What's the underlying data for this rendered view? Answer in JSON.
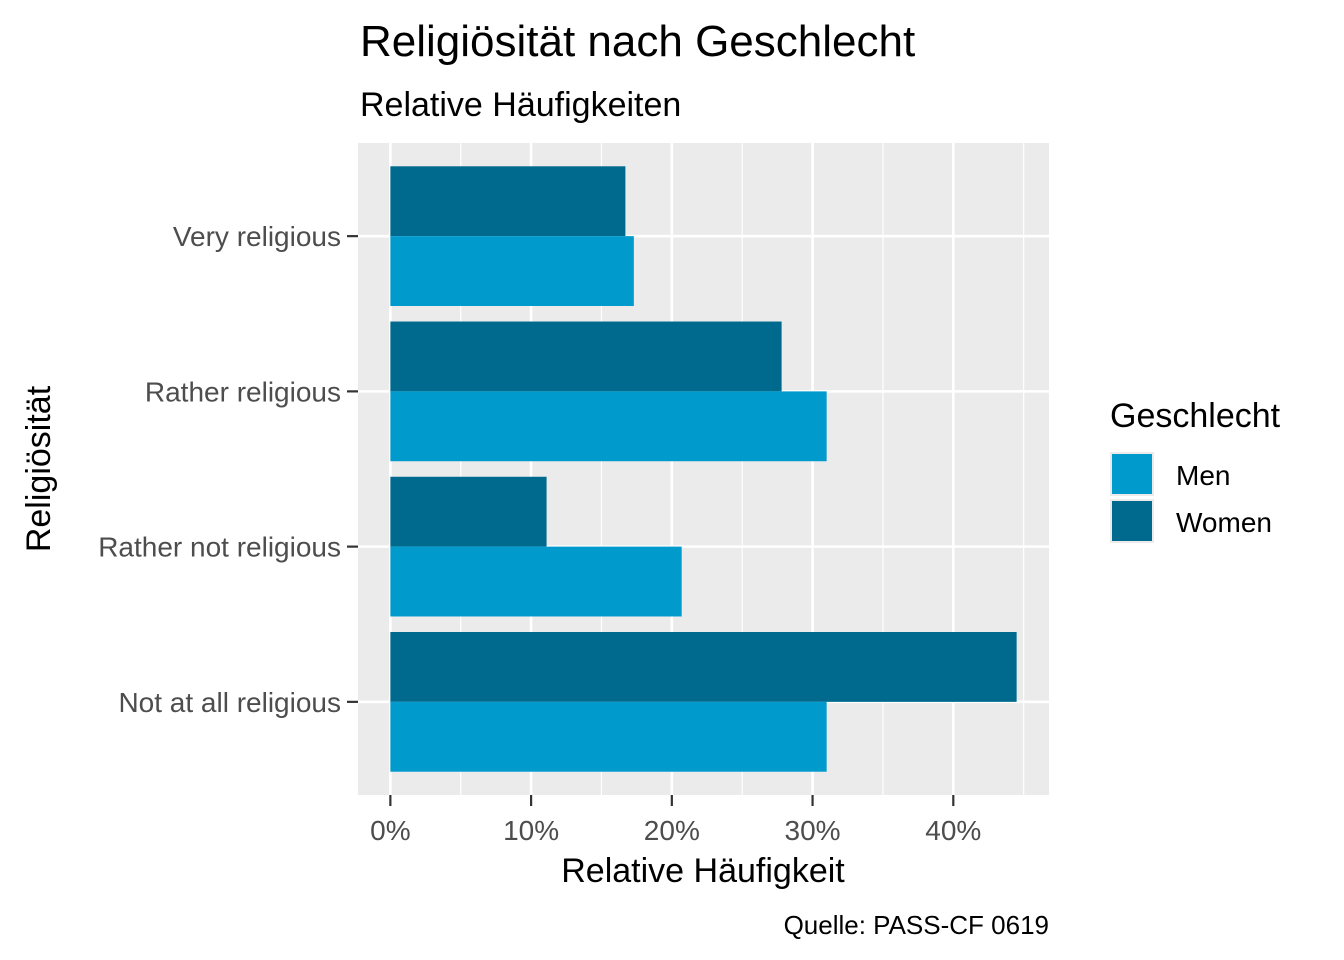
{
  "chart_data": {
    "type": "bar",
    "orientation": "horizontal",
    "title": "Religiösität nach Geschlecht",
    "subtitle": "Relative Häufigkeiten",
    "xlabel": "Relative Häufigkeit",
    "ylabel": "Religiösität",
    "caption": "Quelle: PASS-CF 0619",
    "categories": [
      "Very religious",
      "Rather religious",
      "Rather not religious",
      "Not at all religious"
    ],
    "series": [
      {
        "name": "Men",
        "color": "#009ACD",
        "values": [
          17.3,
          31.0,
          20.7,
          31.0
        ]
      },
      {
        "name": "Women",
        "color": "#006A8E",
        "values": [
          16.7,
          27.8,
          11.1,
          44.5
        ]
      }
    ],
    "x_ticks": [
      "0%",
      "10%",
      "20%",
      "30%",
      "40%"
    ],
    "x_tick_values": [
      0,
      10,
      20,
      30,
      40
    ],
    "xlim": [
      -2.3,
      46.8
    ],
    "grid": true,
    "panel_background": "#EBEBEB",
    "legend": {
      "title": "Geschlecht",
      "position": "right",
      "entries": [
        "Men",
        "Women"
      ]
    }
  }
}
